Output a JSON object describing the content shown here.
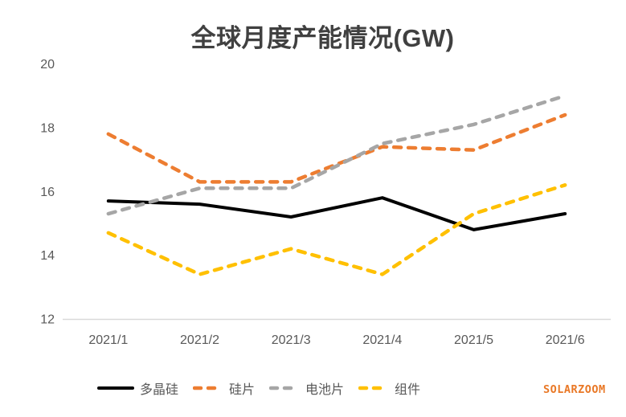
{
  "title": "全球月度产能情况(GW)",
  "watermark": "SOLARZOOM",
  "colors": {
    "title_text": "#404040",
    "axis_text": "#595959",
    "axis_line": "#d9d9d9",
    "series_polysilicon": "#000000",
    "series_wafer": "#ed7d31",
    "series_cell": "#a6a6a6",
    "series_module": "#ffc000",
    "watermark_text": "#e97826",
    "background": "#ffffff"
  },
  "chart_data": {
    "type": "line",
    "title": "全球月度产能情况(GW)",
    "categories": [
      "2021/1",
      "2021/2",
      "2021/3",
      "2021/4",
      "2021/5",
      "2021/6"
    ],
    "series": [
      {
        "name": "多晶硅",
        "color": "#000000",
        "dash": "solid",
        "values": [
          15.7,
          15.6,
          15.2,
          15.8,
          14.8,
          15.3
        ]
      },
      {
        "name": "硅片",
        "color": "#ed7d31",
        "dash": "dashed",
        "values": [
          17.8,
          16.3,
          16.3,
          17.4,
          17.3,
          18.4
        ]
      },
      {
        "name": "电池片",
        "color": "#a6a6a6",
        "dash": "dashed",
        "values": [
          15.3,
          16.1,
          16.1,
          17.5,
          18.1,
          19.0
        ]
      },
      {
        "name": "组件",
        "color": "#ffc000",
        "dash": "dashed",
        "values": [
          14.7,
          13.4,
          14.2,
          13.4,
          15.3,
          16.2
        ]
      }
    ],
    "xlabel": "",
    "ylabel": "",
    "ylim": [
      12,
      20
    ],
    "yticks": [
      20,
      18,
      16,
      14,
      12
    ],
    "grid": false,
    "legend_position": "bottom"
  }
}
